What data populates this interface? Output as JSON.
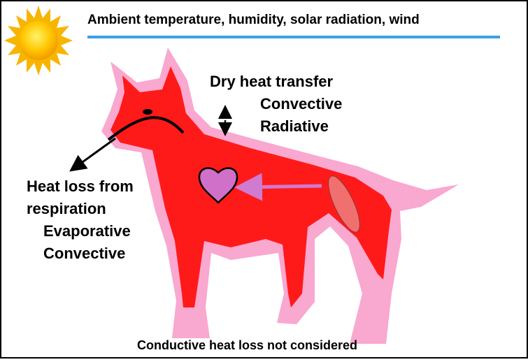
{
  "header": {
    "title": "Ambient temperature, humidity, solar radiation, wind"
  },
  "dry_heat": {
    "title": "Dry heat transfer",
    "modes": [
      "Convective",
      "Radiative"
    ]
  },
  "respiration": {
    "title_lines": [
      "Heat loss from",
      "respiration"
    ],
    "modes": [
      "Evaporative",
      "Convective"
    ]
  },
  "footer": {
    "note": "Conductive heat loss not considered"
  }
}
